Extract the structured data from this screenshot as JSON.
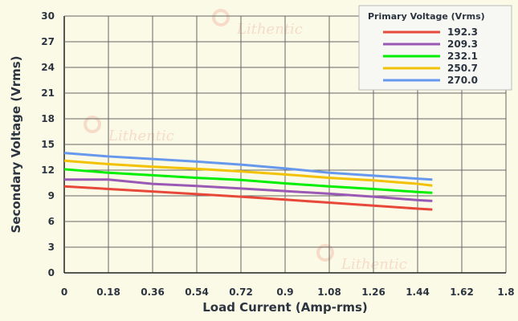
{
  "chart_data": {
    "type": "line",
    "title": "",
    "xlabel": "Load Current (Amp-rms)",
    "ylabel": "Secondary Voltage (Vrms)",
    "xlim": [
      0,
      1.8
    ],
    "ylim": [
      0,
      30
    ],
    "xticks": [
      "0",
      "0.18",
      "0.36",
      "0.54",
      "0.72",
      "0.9",
      "1.08",
      "1.26",
      "1.44",
      "1.62",
      "1.8"
    ],
    "yticks": [
      "0",
      "3",
      "6",
      "9",
      "12",
      "15",
      "18",
      "21",
      "24",
      "27",
      "30"
    ],
    "grid": true,
    "legend": {
      "title": "Primary Voltage (Vrms)",
      "placement": "top-right"
    },
    "watermark": "Lithentic",
    "x": [
      0,
      0.18,
      0.36,
      0.54,
      0.72,
      0.9,
      1.08,
      1.26,
      1.44,
      1.5
    ],
    "series": [
      {
        "name": "192.3",
        "color": "#e8483a",
        "values": [
          10.1,
          9.8,
          9.5,
          9.2,
          8.9,
          8.55,
          8.2,
          7.85,
          7.5,
          7.4
        ]
      },
      {
        "name": "209.3",
        "color": "#9b59b6",
        "values": [
          10.9,
          10.9,
          10.4,
          10.15,
          9.85,
          9.55,
          9.25,
          8.9,
          8.5,
          8.4
        ]
      },
      {
        "name": "232.1",
        "color": "#00ee00",
        "values": [
          12.1,
          11.7,
          11.4,
          11.1,
          10.85,
          10.45,
          10.1,
          9.8,
          9.45,
          9.35
        ]
      },
      {
        "name": "250.7",
        "color": "#f2c200",
        "values": [
          13.1,
          12.7,
          12.4,
          12.15,
          11.85,
          11.5,
          11.1,
          10.8,
          10.4,
          10.2
        ]
      },
      {
        "name": "270.0",
        "color": "#6699ee",
        "values": [
          14.0,
          13.6,
          13.3,
          13.0,
          12.65,
          12.2,
          11.7,
          11.35,
          11.0,
          10.9
        ]
      }
    ]
  }
}
